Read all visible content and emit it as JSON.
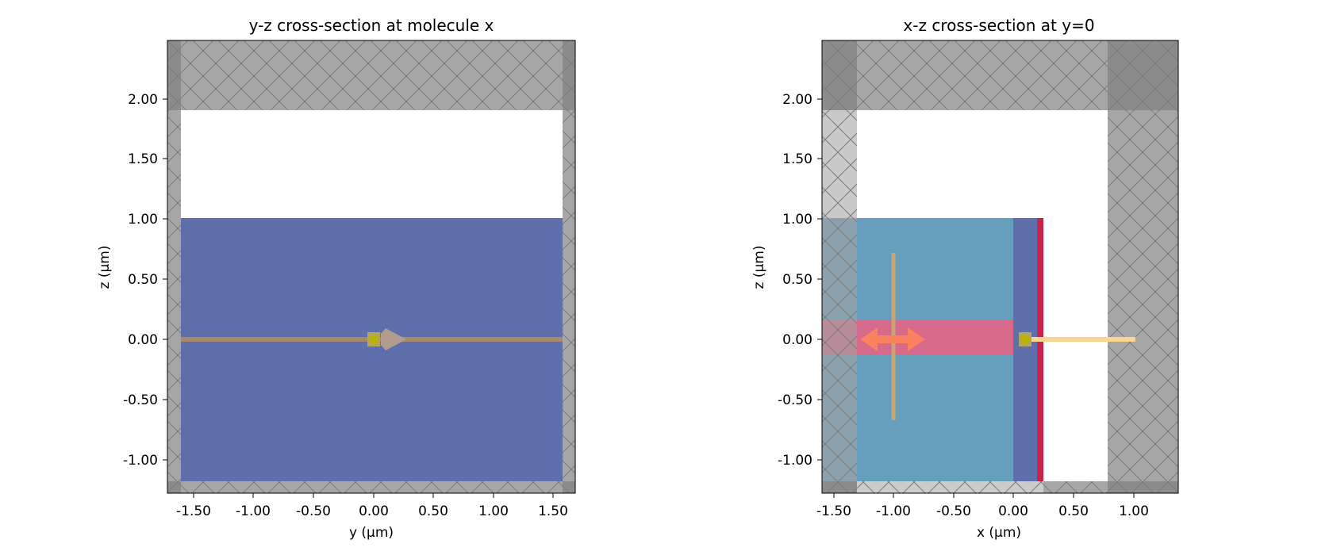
{
  "panels": [
    {
      "title": "y-z cross-section at molecule x",
      "xlabel": "y (μm)",
      "ylabel": "z (μm)",
      "xticks": [
        "-1.50",
        "-1.00",
        "-0.50",
        "0.00",
        "0.50",
        "1.00",
        "1.50"
      ],
      "yticks": [
        "2.00",
        "1.50",
        "1.00",
        "0.50",
        "0.00",
        "-0.50",
        "-1.00"
      ],
      "xlim": [
        -1.7,
        1.7
      ],
      "ylim": [
        -1.3,
        2.5
      ]
    },
    {
      "title": "x-z cross-section at y=0",
      "xlabel": "x (μm)",
      "ylabel": "z (μm)",
      "xticks": [
        "-1.50",
        "-1.00",
        "-0.50",
        "0.00",
        "0.50",
        "1.00"
      ],
      "yticks": [
        "2.00",
        "1.50",
        "1.00",
        "0.50",
        "0.00",
        "-0.50",
        "-1.00"
      ],
      "xlim": [
        -1.7,
        1.4
      ],
      "ylim": [
        -1.3,
        2.5
      ]
    }
  ],
  "colors": {
    "pml": "#a3a3a3",
    "pml_overlap": "#8c8c8c",
    "substrate": "#5f6fab",
    "oxide": "#669ebe",
    "metal": "#c8234a",
    "mode_region": "#d7698a",
    "source_line": "#a58a6c",
    "source_arrow": "#b29c8f",
    "monitor": "#fbd691",
    "dipole": "#fb8160",
    "molecule_box": "#b4a55d",
    "molecule_dot": "#b8b400"
  }
}
